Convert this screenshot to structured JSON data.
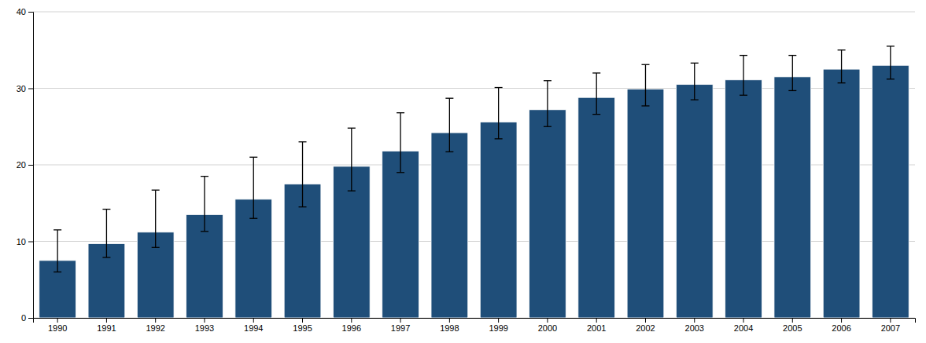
{
  "chart_data": {
    "type": "bar",
    "categories": [
      "1990",
      "1991",
      "1992",
      "1993",
      "1994",
      "1995",
      "1996",
      "1997",
      "1998",
      "1999",
      "2000",
      "2001",
      "2002",
      "2003",
      "2004",
      "2005",
      "2006",
      "2007"
    ],
    "values": [
      7.5,
      9.7,
      11.2,
      13.5,
      15.5,
      17.5,
      19.8,
      21.8,
      24.2,
      25.6,
      27.2,
      28.8,
      29.9,
      30.5,
      31.1,
      31.5,
      32.5,
      33.0
    ],
    "error_low": [
      1.5,
      1.8,
      2.0,
      2.2,
      2.5,
      3.0,
      3.2,
      2.8,
      2.5,
      2.2,
      2.2,
      2.2,
      2.2,
      2.0,
      2.0,
      1.8,
      1.8,
      1.8
    ],
    "error_high": [
      4.0,
      4.5,
      5.5,
      5.0,
      5.5,
      5.5,
      5.0,
      5.0,
      4.5,
      4.5,
      3.8,
      3.2,
      3.2,
      2.8,
      3.2,
      2.8,
      2.5,
      2.5
    ],
    "color": "#1f4e79",
    "ylim": [
      0,
      40
    ],
    "yticks": [
      0,
      10,
      20,
      30,
      40
    ],
    "grid": true
  }
}
